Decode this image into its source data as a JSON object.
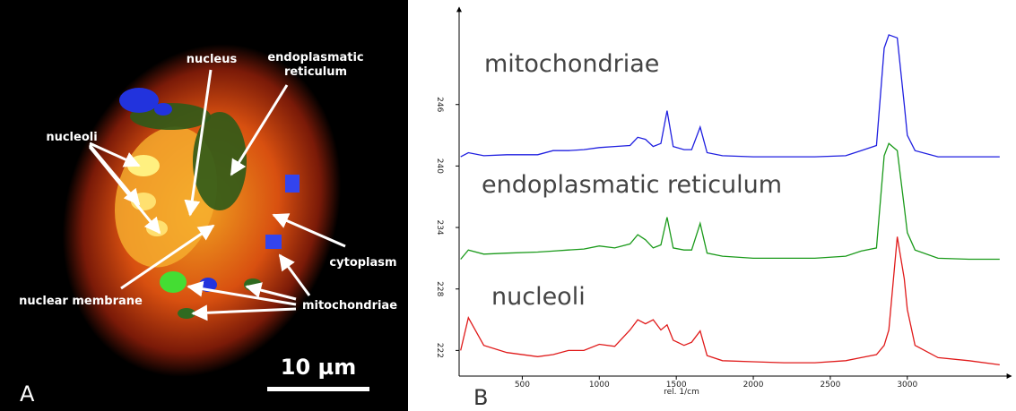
{
  "image_panel": {
    "panel_label": "A",
    "labels": {
      "nucleus": "nucleus",
      "endoplasmatic_reticulum": [
        "endoplasmatic",
        "reticulum"
      ],
      "nucleoli": "nucleoli",
      "cytoplasm": "cytoplasm",
      "nuclear_membrane": "nuclear membrane",
      "mitochondriae": "mitochondriae"
    },
    "scale_bar": "10 µm"
  },
  "chart_data": {
    "type": "line",
    "panel_label": "B",
    "x_label": "rel. 1/cm",
    "x": [
      100,
      150,
      250,
      400,
      600,
      700,
      800,
      900,
      1000,
      1100,
      1200,
      1250,
      1300,
      1350,
      1400,
      1440,
      1480,
      1550,
      1600,
      1655,
      1700,
      1800,
      2000,
      2200,
      2400,
      2600,
      2700,
      2800,
      2850,
      2880,
      2935,
      2980,
      3000,
      3050,
      3200,
      3400,
      3600
    ],
    "series": [
      {
        "name": "mitochondriae",
        "color": "#1f1fe0",
        "values": [
          240.9,
          241.3,
          241.0,
          241.1,
          241.1,
          241.5,
          241.5,
          241.6,
          241.8,
          241.9,
          242.0,
          242.8,
          242.6,
          241.9,
          242.2,
          245.4,
          241.9,
          241.6,
          241.6,
          243.8,
          241.3,
          241.0,
          240.9,
          240.9,
          240.9,
          241.0,
          241.5,
          242.0,
          251.5,
          252.8,
          252.5,
          246.0,
          243.0,
          241.5,
          240.9,
          240.9,
          240.9
        ]
      },
      {
        "name": "endoplasmatic reticulum",
        "color": "#1a9a1a",
        "values": [
          230.9,
          231.8,
          231.4,
          231.5,
          231.6,
          231.7,
          231.8,
          231.9,
          232.2,
          232.0,
          232.4,
          233.3,
          232.8,
          232.0,
          232.3,
          235.0,
          232.0,
          231.8,
          231.8,
          234.4,
          231.5,
          231.2,
          231.0,
          231.0,
          231.0,
          231.2,
          231.7,
          232.0,
          241.0,
          242.2,
          241.5,
          236.0,
          233.5,
          231.8,
          231.0,
          230.9,
          230.9
        ]
      },
      {
        "name": "nucleoli",
        "color": "#e01a1a",
        "values": [
          222.0,
          225.2,
          222.5,
          221.8,
          221.4,
          221.6,
          222.0,
          222.0,
          222.6,
          222.4,
          224.0,
          225.0,
          224.6,
          225.0,
          224.0,
          224.5,
          223.0,
          222.5,
          222.8,
          223.9,
          221.5,
          221.0,
          220.9,
          220.8,
          220.8,
          221.0,
          221.3,
          221.6,
          222.5,
          224.0,
          233.1,
          229.0,
          226.0,
          222.5,
          221.3,
          221.0,
          220.6
        ]
      }
    ],
    "xlim": [
      90,
      3630
    ],
    "ylim": [
      219.5,
      255.5
    ],
    "xticks": [
      500,
      1000,
      1500,
      2000,
      2500,
      3000
    ],
    "yticks": [
      222,
      228,
      234,
      240,
      246
    ]
  }
}
